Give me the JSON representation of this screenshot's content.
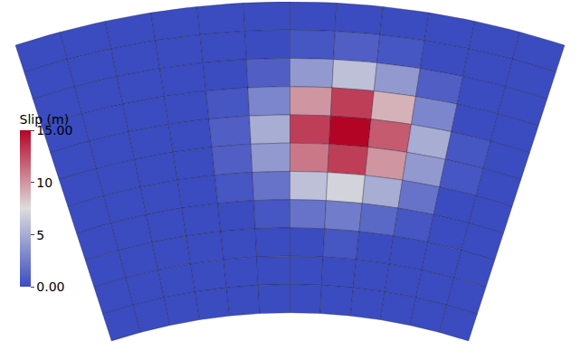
{
  "chart_data": {
    "type": "heatmap",
    "tick_labels": false,
    "colorbar": {
      "title": "Slip (m)",
      "range": [
        0,
        15
      ],
      "ticks": [
        {
          "value": 15,
          "label": "15.00"
        },
        10,
        5,
        {
          "value": 0,
          "label": "0.00"
        }
      ]
    },
    "slip": [
      [
        0,
        0,
        0,
        0,
        0,
        0,
        0,
        0,
        0,
        0,
        0,
        0
      ],
      [
        0,
        0,
        0,
        0,
        0,
        0,
        0.5,
        1,
        0.5,
        0,
        0,
        0
      ],
      [
        0,
        0,
        0,
        0,
        0,
        1,
        4,
        6,
        4,
        1,
        0,
        0
      ],
      [
        0,
        0,
        0,
        0,
        0.5,
        3,
        10,
        13,
        9,
        3,
        0,
        0
      ],
      [
        0,
        0,
        0,
        0,
        1,
        5,
        13,
        15,
        12,
        5,
        0.5,
        0
      ],
      [
        0,
        0,
        0,
        0,
        1,
        4,
        11,
        13,
        10,
        4,
        0.5,
        0
      ],
      [
        0,
        0,
        0,
        0,
        0.5,
        2,
        6,
        7,
        5,
        2,
        0,
        0
      ],
      [
        0,
        0,
        0,
        0,
        0,
        0.5,
        2,
        2.5,
        1.5,
        0.5,
        0,
        0
      ],
      [
        0,
        0,
        0,
        0,
        0,
        0,
        0,
        0.5,
        0,
        0,
        0,
        0
      ],
      [
        0,
        0,
        0,
        0,
        0,
        0,
        0,
        0,
        0,
        0,
        0,
        0
      ],
      [
        0,
        0,
        0,
        0,
        0,
        0,
        0,
        0,
        0,
        0,
        0,
        0
      ]
    ]
  }
}
